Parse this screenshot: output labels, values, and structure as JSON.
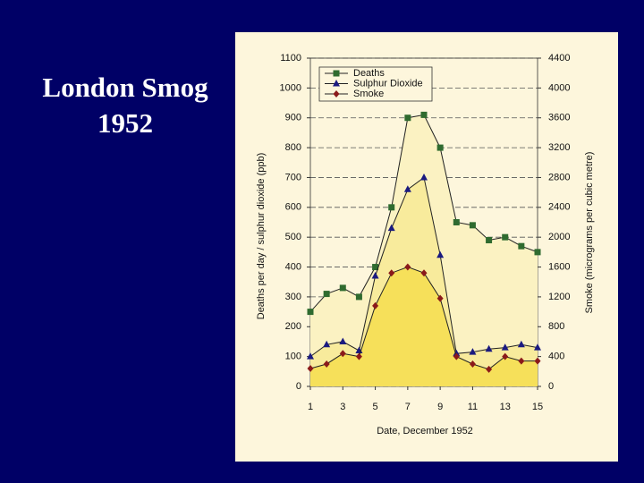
{
  "title": "London Smog 1952",
  "chart_data": {
    "type": "line",
    "x_label": "Date, December 1952",
    "y_label": "Deaths per day / sulphur dioxide (ppb)",
    "y2_label": "Smoke (micrograms per cubic metre)",
    "x": [
      1,
      2,
      3,
      4,
      5,
      6,
      7,
      8,
      9,
      10,
      11,
      12,
      13,
      14,
      15
    ],
    "xlim": [
      1,
      15
    ],
    "xticks": [
      1,
      3,
      5,
      7,
      9,
      11,
      13,
      15
    ],
    "ylim": [
      0,
      1100
    ],
    "yticks": [
      0,
      100,
      200,
      300,
      400,
      500,
      600,
      700,
      800,
      900,
      1000,
      1100
    ],
    "y2lim": [
      0,
      4400
    ],
    "y2ticks": [
      0,
      400,
      800,
      1200,
      1600,
      2000,
      2400,
      2800,
      3200,
      3600,
      4000,
      4400
    ],
    "grid": true,
    "legend": "upper left",
    "series": [
      {
        "name": "Deaths",
        "color": "#2f6b2f",
        "fill": "#fbf2c2",
        "values": [
          250,
          310,
          330,
          300,
          400,
          600,
          900,
          910,
          800,
          550,
          540,
          490,
          500,
          470,
          450
        ]
      },
      {
        "name": "Sulphur Dioxide",
        "color": "#1a1a80",
        "fill": "#f8eb9c",
        "values": [
          100,
          140,
          150,
          120,
          370,
          530,
          660,
          700,
          440,
          110,
          115,
          125,
          130,
          140,
          130
        ]
      },
      {
        "name": "Smoke",
        "color": "#8b1a1a",
        "fill": "#f6e05a",
        "axis": "y2",
        "values": [
          240,
          300,
          440,
          400,
          1080,
          1520,
          1600,
          1520,
          1180,
          400,
          300,
          230,
          400,
          340,
          340
        ]
      }
    ]
  }
}
